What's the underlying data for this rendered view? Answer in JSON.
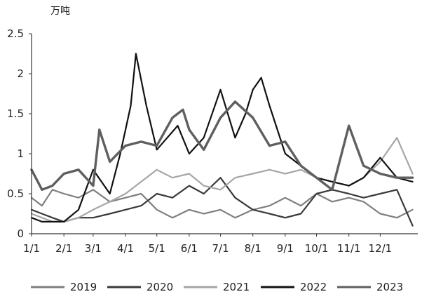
{
  "chart_data": {
    "type": "line",
    "unit_label": "万吨",
    "ylim": [
      0,
      2.5
    ],
    "yticks": [
      "0",
      "0.5",
      "1",
      "1.5",
      "2",
      "2.5"
    ],
    "x_ticks": [
      "1/1",
      "2/1",
      "3/1",
      "4/1",
      "5/1",
      "6/1",
      "7/1",
      "8/1",
      "9/1",
      "10/1",
      "11/1",
      "12/1"
    ],
    "x_tick_days": [
      0,
      31,
      59,
      90,
      120,
      151,
      181,
      212,
      243,
      273,
      304,
      334
    ],
    "x_range_days": [
      0,
      370
    ],
    "grid": false,
    "legend_position": "bottom",
    "series": [
      {
        "name": "2019",
        "color": "#7f7f7f",
        "width": 2.2,
        "x": [
          0,
          10,
          20,
          31,
          45,
          59,
          75,
          90,
          105,
          120,
          135,
          151,
          165,
          181,
          195,
          212,
          228,
          243,
          258,
          273,
          288,
          304,
          318,
          334,
          350,
          365
        ],
        "y": [
          0.45,
          0.35,
          0.55,
          0.5,
          0.45,
          0.55,
          0.4,
          0.45,
          0.5,
          0.3,
          0.2,
          0.3,
          0.25,
          0.3,
          0.2,
          0.3,
          0.35,
          0.45,
          0.35,
          0.5,
          0.4,
          0.45,
          0.4,
          0.25,
          0.2,
          0.3
        ]
      },
      {
        "name": "2020",
        "color": "#3a3a3a",
        "width": 2.2,
        "x": [
          0,
          10,
          20,
          31,
          45,
          59,
          75,
          90,
          105,
          120,
          135,
          151,
          165,
          181,
          195,
          212,
          228,
          243,
          258,
          273,
          288,
          304,
          318,
          334,
          350,
          365
        ],
        "y": [
          0.3,
          0.25,
          0.2,
          0.15,
          0.2,
          0.2,
          0.25,
          0.3,
          0.35,
          0.5,
          0.45,
          0.6,
          0.5,
          0.7,
          0.45,
          0.3,
          0.25,
          0.2,
          0.25,
          0.5,
          0.55,
          0.5,
          0.45,
          0.5,
          0.55,
          0.1
        ]
      },
      {
        "name": "2021",
        "color": "#a6a6a6",
        "width": 2.2,
        "x": [
          0,
          10,
          20,
          31,
          45,
          59,
          75,
          90,
          105,
          120,
          135,
          151,
          165,
          181,
          195,
          212,
          228,
          243,
          258,
          273,
          288,
          304,
          318,
          334,
          350,
          365
        ],
        "y": [
          0.25,
          0.2,
          0.15,
          0.15,
          0.2,
          0.3,
          0.4,
          0.5,
          0.65,
          0.8,
          0.7,
          0.75,
          0.6,
          0.55,
          0.7,
          0.75,
          0.8,
          0.75,
          0.8,
          0.7,
          0.65,
          0.6,
          0.7,
          0.9,
          1.2,
          0.75
        ]
      },
      {
        "name": "2022",
        "color": "#111111",
        "width": 2.2,
        "x": [
          0,
          10,
          20,
          31,
          45,
          59,
          75,
          85,
          95,
          100,
          110,
          120,
          130,
          140,
          151,
          165,
          181,
          195,
          205,
          212,
          220,
          228,
          243,
          258,
          273,
          288,
          304,
          318,
          334,
          350,
          365
        ],
        "y": [
          0.2,
          0.15,
          0.15,
          0.15,
          0.3,
          0.8,
          0.5,
          1.0,
          1.6,
          2.25,
          1.6,
          1.05,
          1.2,
          1.35,
          1.0,
          1.2,
          1.8,
          1.2,
          1.5,
          1.8,
          1.95,
          1.6,
          1.0,
          0.85,
          0.7,
          0.65,
          0.6,
          0.7,
          0.95,
          0.7,
          0.65
        ]
      },
      {
        "name": "2023",
        "color": "#5f5f5f",
        "width": 3.4,
        "x": [
          0,
          10,
          20,
          31,
          45,
          59,
          65,
          75,
          90,
          105,
          120,
          135,
          145,
          151,
          165,
          181,
          195,
          212,
          228,
          243,
          258,
          273,
          288,
          304,
          318,
          334,
          350,
          365
        ],
        "y": [
          0.8,
          0.55,
          0.6,
          0.75,
          0.8,
          0.6,
          1.3,
          0.9,
          1.1,
          1.15,
          1.1,
          1.45,
          1.55,
          1.3,
          1.05,
          1.45,
          1.65,
          1.45,
          1.1,
          1.15,
          0.85,
          0.7,
          0.55,
          1.35,
          0.85,
          0.75,
          0.7,
          0.7
        ]
      }
    ]
  }
}
